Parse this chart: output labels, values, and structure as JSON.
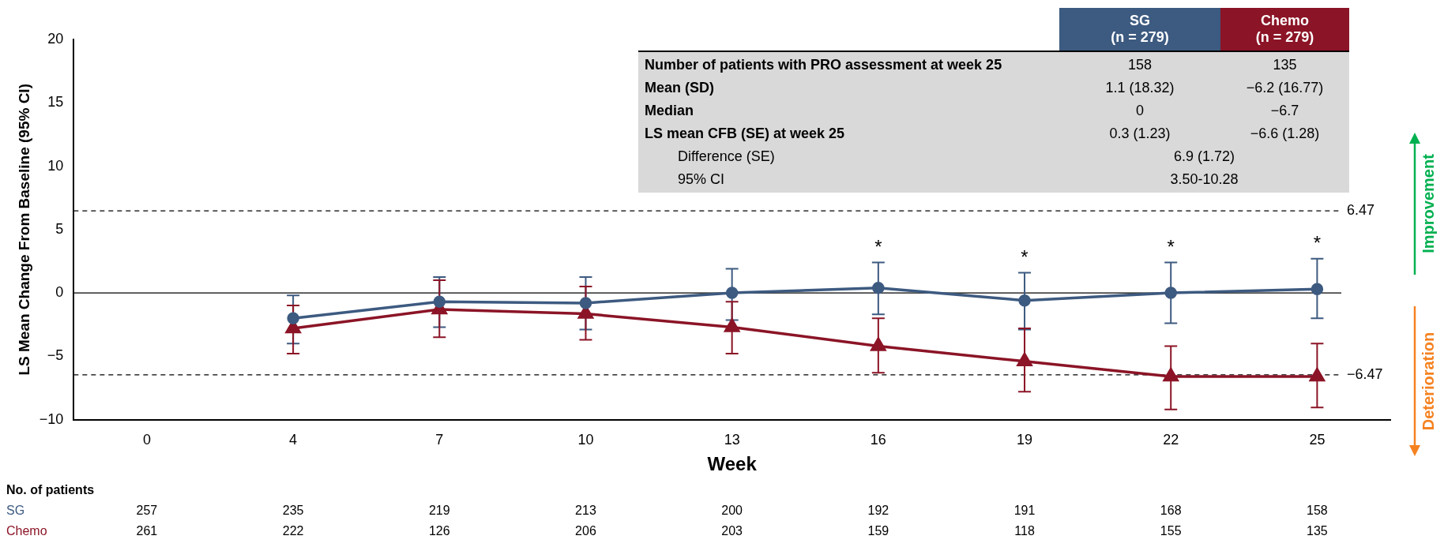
{
  "chart_data": {
    "type": "line",
    "xlabel": "Week",
    "ylabel": "LS Mean Change From Baseline (95% CI)",
    "categories": [
      "0",
      "4",
      "7",
      "10",
      "13",
      "16",
      "19",
      "22",
      "25"
    ],
    "ylim": [
      -10,
      20
    ],
    "yticks": [
      {
        "value": -10,
        "label": "−10"
      },
      {
        "value": -5,
        "label": "−5"
      },
      0,
      5,
      10,
      15,
      20
    ],
    "grid": false,
    "legend": false,
    "series": [
      {
        "name": "SG",
        "color": "#3d5a80",
        "marker": "circle",
        "values": [
          null,
          -2.0,
          -0.7,
          -0.8,
          0.0,
          0.4,
          -0.6,
          0.0,
          0.3
        ],
        "errors": [
          null,
          [
            -4.0,
            -0.2
          ],
          [
            -2.7,
            1.25
          ],
          [
            -2.9,
            1.25
          ],
          [
            -2.15,
            1.9
          ],
          [
            -1.7,
            2.4
          ],
          [
            -2.9,
            1.6
          ],
          [
            -2.4,
            2.4
          ],
          [
            -2.0,
            2.7
          ]
        ]
      },
      {
        "name": "Chemo",
        "color": "#8b1426",
        "marker": "triangle",
        "values": [
          null,
          -2.8,
          -1.3,
          -1.65,
          -2.7,
          -4.2,
          -5.4,
          -6.6,
          -6.6
        ],
        "errors": [
          null,
          [
            -4.8,
            -1.0
          ],
          [
            -3.5,
            1.0
          ],
          [
            -3.7,
            0.5
          ],
          [
            -4.8,
            -0.7
          ],
          [
            -6.3,
            -2.0
          ],
          [
            -7.8,
            -2.8
          ],
          [
            -9.2,
            -4.2
          ],
          [
            -9.05,
            -4.0
          ]
        ]
      }
    ],
    "ref_lines": [
      {
        "axis": "y",
        "value": 6.47,
        "label": "6.47",
        "line_style": "dashed",
        "color": "#000000"
      },
      {
        "axis": "y",
        "value": -6.47,
        "label": "−6.47",
        "line_style": "dashed",
        "color": "#000000"
      },
      {
        "axis": "y",
        "value": 0,
        "line_style": "solid",
        "color": "#000000"
      }
    ],
    "annotations": [
      "SG\n(n = 279)",
      "Chemo\n(n = 279)",
      "Number of patients with PRO assessment at week 25",
      "158",
      "135",
      "Mean (SD)",
      "1.1 (18.32)",
      "−6.2 (16.77)",
      "Median",
      "0",
      "−6.7",
      "LS mean CFB (SE) at week 25",
      "0.3 (1.23)",
      "−6.6 (1.28)",
      "Difference (SE)",
      "6.9 (1.72)",
      "95% CI",
      "3.50-10.28",
      "No. of patients",
      "257",
      "235",
      "219",
      "213",
      "200",
      "192",
      "191",
      "168",
      "158",
      "261",
      "222",
      "126",
      "206",
      "203",
      "159",
      "118",
      "155",
      "135",
      "Improvement",
      "Deterioration",
      "*",
      "*",
      "*",
      "*"
    ]
  }
}
